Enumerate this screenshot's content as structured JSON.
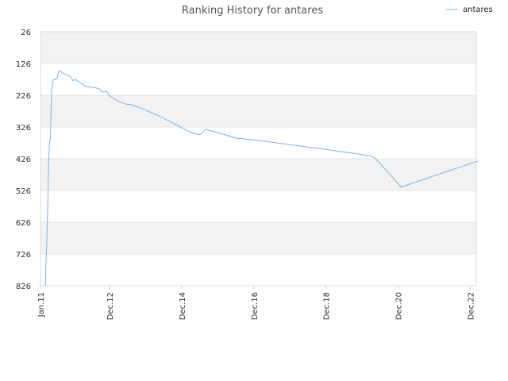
{
  "chart_data": {
    "type": "line",
    "title": "Ranking History for antares",
    "legend": {
      "position": "top-right",
      "entries": [
        "antares"
      ]
    },
    "grid": true,
    "y_axis": {
      "inverted": true,
      "range": [
        26,
        826
      ],
      "ticks": [
        "26",
        "126",
        "226",
        "326",
        "426",
        "526",
        "626",
        "726",
        "826"
      ]
    },
    "x_axis": {
      "range": [
        "2011-01",
        "2023-02"
      ],
      "ticks": [
        "Jan.11",
        "Dec.12",
        "Dec.14",
        "Dec.16",
        "Dec.18",
        "Dec.20",
        "Dec.22"
      ]
    },
    "series": [
      {
        "name": "antares",
        "color": "#7cb5ec",
        "points": [
          [
            "2011-02-20",
            826
          ],
          [
            "2011-02-25",
            760
          ],
          [
            "2011-03-03",
            700
          ],
          [
            "2011-03-10",
            620
          ],
          [
            "2011-03-17",
            520
          ],
          [
            "2011-03-24",
            430
          ],
          [
            "2011-04-01",
            372
          ],
          [
            "2011-04-10",
            364
          ],
          [
            "2011-04-15",
            300
          ],
          [
            "2011-04-22",
            220
          ],
          [
            "2011-05-01",
            185
          ],
          [
            "2011-05-12",
            176
          ],
          [
            "2011-06-01",
            177
          ],
          [
            "2011-06-20",
            172
          ],
          [
            "2011-07-01",
            152
          ],
          [
            "2011-07-15",
            148
          ],
          [
            "2011-08-01",
            154
          ],
          [
            "2011-09-01",
            159
          ],
          [
            "2011-10-01",
            163
          ],
          [
            "2011-11-01",
            167
          ],
          [
            "2011-11-25",
            180
          ],
          [
            "2011-12-20",
            176
          ],
          [
            "2012-02-01",
            185
          ],
          [
            "2012-04-01",
            198
          ],
          [
            "2012-07-01",
            202
          ],
          [
            "2012-08-15",
            205
          ],
          [
            "2012-09-25",
            216
          ],
          [
            "2012-11-01",
            214
          ],
          [
            "2012-12-10",
            230
          ],
          [
            "2013-03-01",
            245
          ],
          [
            "2013-05-15",
            254
          ],
          [
            "2013-07-15",
            256
          ],
          [
            "2013-10-01",
            265
          ],
          [
            "2014-03-01",
            285
          ],
          [
            "2014-09-01",
            313
          ],
          [
            "2015-01-15",
            336
          ],
          [
            "2015-04-01",
            346
          ],
          [
            "2015-05-15",
            350
          ],
          [
            "2015-06-15",
            348
          ],
          [
            "2015-08-01",
            333
          ],
          [
            "2015-09-01",
            336
          ],
          [
            "2016-03-01",
            352
          ],
          [
            "2016-06-01",
            361
          ],
          [
            "2017-01-01",
            368
          ],
          [
            "2018-01-01",
            383
          ],
          [
            "2019-01-01",
            398
          ],
          [
            "2020-03-01",
            417
          ],
          [
            "2020-04-15",
            425
          ],
          [
            "2021-01-01",
            515
          ],
          [
            "2023-02-20",
            433
          ]
        ]
      }
    ]
  }
}
